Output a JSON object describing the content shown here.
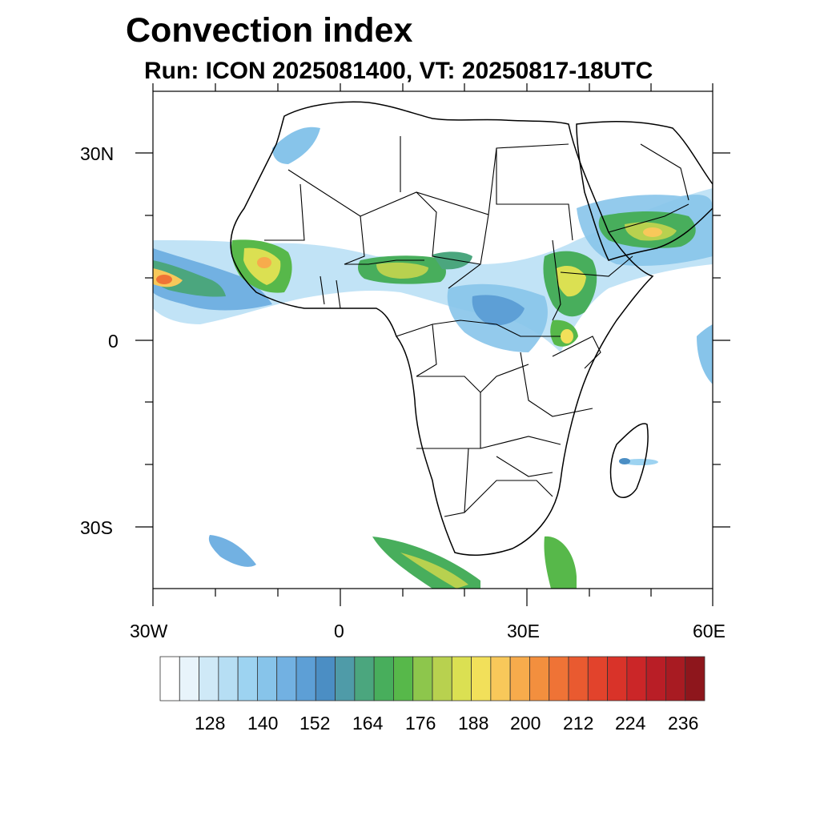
{
  "title": "Convection index",
  "subtitle": "Run: ICON 2025081400,  VT: 20250817-18UTC",
  "map": {
    "region": "Africa",
    "lon_range": [
      -30,
      60
    ],
    "lat_range": [
      -40,
      40
    ],
    "lat_labels": [
      "30N",
      "0",
      "30S"
    ],
    "lon_labels": [
      "30W",
      "0",
      "30E",
      "60E"
    ]
  },
  "colorbar": {
    "labels": [
      "128",
      "140",
      "152",
      "164",
      "176",
      "188",
      "200",
      "212",
      "224",
      "236"
    ],
    "colors": [
      "#ffffff",
      "#e8f4fb",
      "#cfe9f7",
      "#b6def4",
      "#9dd3f1",
      "#87c4ea",
      "#72b1e2",
      "#5d9fd6",
      "#4b8ec4",
      "#4f9ba8",
      "#4ba67e",
      "#48ae5c",
      "#57b84a",
      "#8dc64c",
      "#b8d14f",
      "#dbe052",
      "#f2e05a",
      "#f8c85a",
      "#f7ab4c",
      "#f38f3e",
      "#ef7336",
      "#e95a30",
      "#e2432c",
      "#d93329",
      "#cb2628",
      "#b91e26",
      "#a81b22",
      "#8e161c"
    ]
  }
}
